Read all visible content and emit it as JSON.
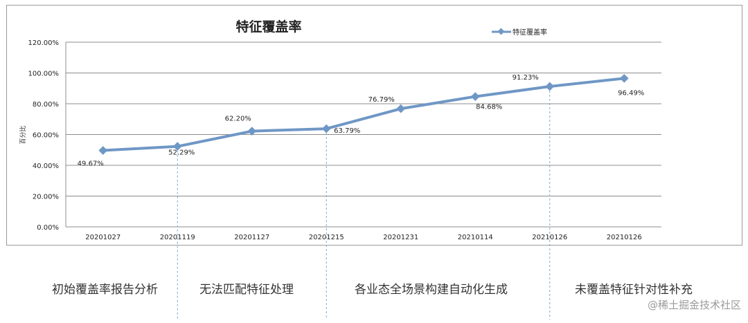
{
  "chart_data": {
    "type": "line",
    "title": "特征覆盖率",
    "ylabel": "百分比",
    "xlabel": "",
    "ylim": [
      0,
      120
    ],
    "y_ticks": [
      "0.00%",
      "20.00%",
      "40.00%",
      "60.00%",
      "80.00%",
      "100.00%",
      "120.00%"
    ],
    "categories": [
      "20201027",
      "20201119",
      "20201127",
      "20201215",
      "20201231",
      "20210114",
      "20210126",
      "20210126"
    ],
    "series": [
      {
        "name": "特征覆盖率",
        "values": [
          49.67,
          52.29,
          62.2,
          63.79,
          76.79,
          84.68,
          91.23,
          96.49
        ],
        "labels": [
          "49.67%",
          "52.29%",
          "62.20%",
          "63.79%",
          "76.79%",
          "84.68%",
          "91.23%",
          "96.49%"
        ],
        "color": "#6f97c6"
      }
    ],
    "grid": true,
    "legend": "top-right"
  },
  "phases": [
    "初始覆盖率报告分析",
    "无法匹配特征处理",
    "各业态全场景构建自动化生成",
    "未覆盖特征针对性补充"
  ],
  "watermark": "@稀土掘金技术社区"
}
